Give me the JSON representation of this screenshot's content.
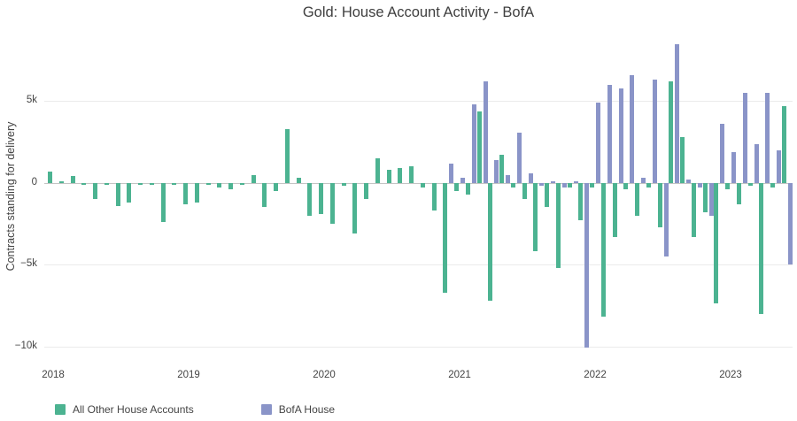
{
  "chart_data": {
    "type": "bar",
    "barmode": "group",
    "title": "Gold: House Account Activity - BofA",
    "xlabel": "",
    "ylabel": "Contracts standing for delivery",
    "value_units": "thousands of contracts",
    "ylim": [
      -11,
      9.3
    ],
    "grid": true,
    "legend_position": "bottom-left",
    "y_ticks": [
      {
        "value": 5,
        "label": "5k"
      },
      {
        "value": 0,
        "label": "0"
      },
      {
        "value": -5,
        "label": "−5k"
      },
      {
        "value": -10,
        "label": "−10k"
      }
    ],
    "x_ticks": [
      {
        "month_index": 0,
        "label": "2018"
      },
      {
        "month_index": 12,
        "label": "2019"
      },
      {
        "month_index": 24,
        "label": "2020"
      },
      {
        "month_index": 36,
        "label": "2021"
      },
      {
        "month_index": 48,
        "label": "2022"
      },
      {
        "month_index": 60,
        "label": "2023"
      }
    ],
    "months": [
      "2018-01",
      "2018-02",
      "2018-03",
      "2018-04",
      "2018-05",
      "2018-06",
      "2018-07",
      "2018-08",
      "2018-09",
      "2018-10",
      "2018-11",
      "2018-12",
      "2019-01",
      "2019-02",
      "2019-03",
      "2019-04",
      "2019-05",
      "2019-06",
      "2019-07",
      "2019-08",
      "2019-09",
      "2019-10",
      "2019-11",
      "2019-12",
      "2020-01",
      "2020-02",
      "2020-03",
      "2020-04",
      "2020-05",
      "2020-06",
      "2020-07",
      "2020-08",
      "2020-09",
      "2020-10",
      "2020-11",
      "2020-12",
      "2021-01",
      "2021-02",
      "2021-03",
      "2021-04",
      "2021-05",
      "2021-06",
      "2021-07",
      "2021-08",
      "2021-09",
      "2021-10",
      "2021-11",
      "2021-12",
      "2022-01",
      "2022-02",
      "2022-03",
      "2022-04",
      "2022-05",
      "2022-06",
      "2022-07",
      "2022-08",
      "2022-09",
      "2022-10",
      "2022-11",
      "2022-12",
      "2023-01",
      "2023-02",
      "2023-03",
      "2023-04",
      "2023-05",
      "2023-06"
    ],
    "series": [
      {
        "name": "All Other House Accounts",
        "color": "#4cb391",
        "values": [
          0.7,
          0.1,
          0.4,
          -0.1,
          -1.0,
          -0.1,
          -1.4,
          -1.2,
          -0.1,
          -0.1,
          -2.4,
          -0.1,
          -1.3,
          -1.2,
          -0.1,
          -0.3,
          -0.4,
          -0.1,
          0.5,
          -1.5,
          -0.5,
          3.3,
          0.3,
          -2.0,
          -1.9,
          -2.5,
          -0.2,
          -3.1,
          -1.0,
          1.5,
          0.8,
          0.9,
          1.0,
          -0.3,
          -1.7,
          -6.7,
          -0.5,
          -0.7,
          4.4,
          -7.2,
          1.7,
          -0.3,
          -1.0,
          -4.2,
          -1.5,
          -5.2,
          -0.3,
          -2.3,
          -0.3,
          -8.2,
          -3.3,
          -0.4,
          -2.0,
          -0.3,
          -2.7,
          6.2,
          2.8,
          -3.3,
          -1.8,
          -7.4,
          -0.4,
          -1.3,
          -0.2,
          -8.0,
          -0.3,
          4.7
        ]
      },
      {
        "name": "BofA House",
        "color": "#8a94c8",
        "values": [
          0,
          0,
          0,
          0,
          0,
          0,
          0,
          0,
          0,
          0,
          0,
          0,
          0,
          0,
          0,
          0,
          0,
          0,
          0,
          0,
          0,
          0,
          0,
          0,
          0,
          0,
          0,
          0,
          0,
          0,
          0,
          0,
          0,
          0,
          0,
          1.2,
          0.3,
          4.8,
          6.2,
          1.4,
          0.5,
          3.1,
          0.6,
          -0.2,
          0.1,
          -0.3,
          0.1,
          -10.1,
          4.9,
          6.0,
          5.8,
          6.6,
          0.3,
          6.3,
          -4.5,
          8.5,
          0.2,
          -0.3,
          -2.0,
          3.6,
          1.9,
          5.5,
          2.4,
          5.5,
          2.0,
          -5.0
        ]
      }
    ]
  }
}
